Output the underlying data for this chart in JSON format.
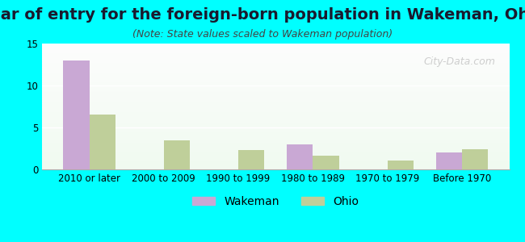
{
  "title": "Year of entry for the foreign-born population in Wakeman, Ohio",
  "subtitle": "(Note: State values scaled to Wakeman population)",
  "categories": [
    "2010 or later",
    "2000 to 2009",
    "1990 to 1999",
    "1980 to 1989",
    "1970 to 1979",
    "Before 1970"
  ],
  "wakeman_values": [
    13,
    0,
    0,
    3,
    0,
    2
  ],
  "ohio_values": [
    6.5,
    3.5,
    2.3,
    1.6,
    1.1,
    2.4
  ],
  "wakeman_color": "#c9a8d4",
  "ohio_color": "#bfcf9a",
  "background_color": "#00ffff",
  "plot_bg_top": "#e8f5e9",
  "plot_bg_bottom": "#f0faf0",
  "ylim": [
    0,
    15
  ],
  "yticks": [
    0,
    5,
    10,
    15
  ],
  "bar_width": 0.35,
  "title_fontsize": 14,
  "subtitle_fontsize": 9,
  "tick_fontsize": 8.5,
  "legend_fontsize": 10,
  "watermark_text": "City-Data.com"
}
